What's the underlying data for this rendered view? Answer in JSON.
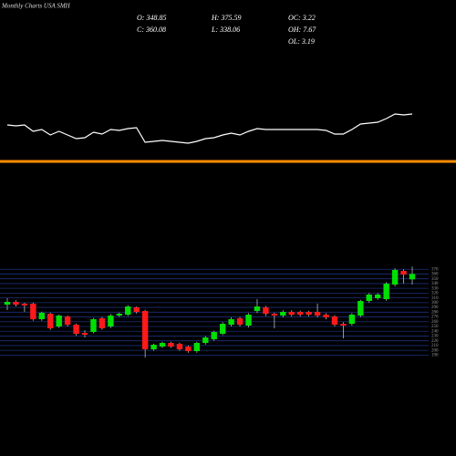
{
  "chart_data": {
    "type": "candlestick",
    "title": "Monthly Charts USA SMH",
    "info": [
      "O: 348.85",
      "H: 375.59",
      "OC: 3.22",
      "C: 360.08",
      "L: 338.06",
      "OH: 7.67",
      "OL: 3.19"
    ],
    "up_color": "#00e000",
    "down_color": "#ff1a1a",
    "grid_color": "#1c2f7a",
    "ylim": [
      185,
      380
    ],
    "yticks": [
      190,
      200,
      210,
      220,
      230,
      240,
      250,
      260,
      270,
      280,
      290,
      300,
      310,
      320,
      330,
      340,
      350,
      360,
      370
    ],
    "grid": true,
    "open": [
      295.9,
      301.6,
      297.8,
      297.8,
      265.3,
      276.8,
      250.0,
      271.0,
      253.8,
      236.6,
      238.5,
      267.2,
      250.0,
      272.9,
      274.8,
      290.1,
      282.5,
      202.2,
      207.9,
      215.6,
      213.7,
      207.9,
      198.4,
      215.6,
      223.2,
      234.7,
      253.8,
      267.2,
      251.9,
      282.5,
      290.1,
      276.8,
      272.9,
      280.6,
      280.6,
      280.6,
      280.6,
      274.8,
      271.0,
      255.7,
      255.7,
      272.9,
      303.5,
      309.3,
      307.3,
      337.9,
      366.6,
      348.85
    ],
    "high": [
      309.3,
      305,
      300,
      300,
      281,
      279,
      275,
      273,
      256,
      242.3,
      268,
      270,
      276,
      279,
      295,
      292,
      285,
      214,
      218,
      218,
      216,
      210,
      218,
      230,
      241,
      259,
      269,
      270,
      278,
      307.3,
      293,
      279,
      284,
      284,
      283,
      283,
      297.8,
      278,
      274,
      259,
      278,
      306,
      320,
      320,
      343,
      372,
      370,
      375.59
    ],
    "low": [
      284.4,
      292,
      280.6,
      262,
      262,
      243,
      247,
      250,
      231,
      227.0,
      236,
      243,
      247,
      270,
      272,
      277,
      185,
      199,
      205,
      205,
      199,
      195,
      195,
      212,
      220,
      232,
      250,
      250,
      248,
      278,
      272,
      246.2,
      269,
      271,
      271,
      271,
      269,
      265,
      250,
      225.1,
      252,
      270,
      300,
      306,
      304,
      334,
      340,
      338.06
    ],
    "close": [
      301.6,
      295.9,
      294.0,
      265.3,
      278.7,
      246.2,
      272.9,
      253.8,
      234.7,
      232.8,
      265.3,
      246.2,
      272.9,
      276.8,
      292.0,
      280.6,
      202.2,
      211.7,
      215.6,
      207.9,
      202.2,
      198.4,
      215.6,
      227.0,
      238.5,
      255.7,
      265.3,
      253.8,
      274.8,
      292.0,
      276.8,
      272.9,
      280.6,
      274.8,
      274.8,
      274.8,
      272.9,
      269.1,
      253.8,
      251.9,
      274.8,
      303.5,
      316.9,
      316.9,
      339.8,
      368.5,
      359.0,
      360.08
    ],
    "line": {
      "color": "#ffffff",
      "ylim": [
        0,
        80
      ],
      "values": [
        43,
        42,
        43,
        36,
        38,
        32,
        36,
        32,
        28,
        29,
        35,
        33,
        38,
        37,
        39,
        40,
        24,
        25,
        26,
        25,
        24,
        23,
        25,
        28,
        29,
        32,
        34,
        32,
        36,
        39,
        38,
        38,
        38,
        38,
        38,
        38,
        38,
        37,
        33,
        33,
        38,
        44,
        45,
        46,
        50,
        55,
        54,
        55
      ]
    },
    "separator_color": "#ff8c00"
  }
}
